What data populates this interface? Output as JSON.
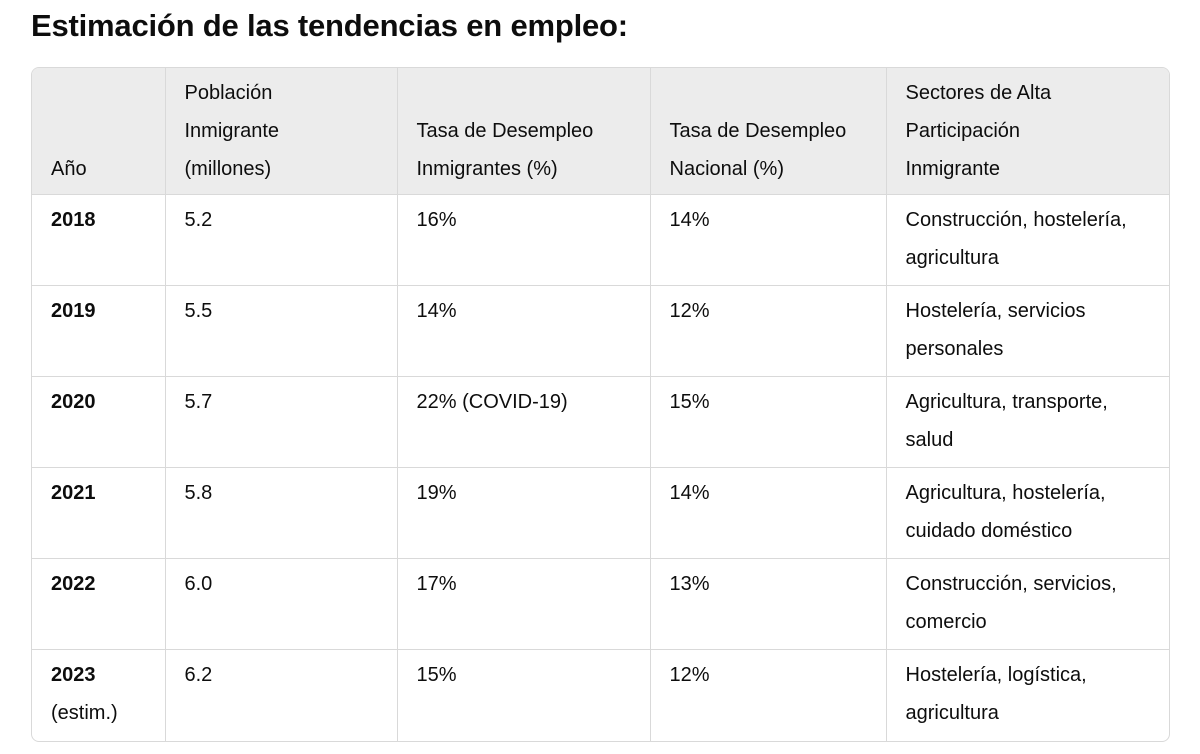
{
  "title": "Estimación de las tendencias en empleo:",
  "table": {
    "headers": [
      [
        "Año"
      ],
      [
        "Población",
        "Inmigrante",
        "(millones)"
      ],
      [
        "Tasa de Desempleo",
        "Inmigrantes (%)"
      ],
      [
        "Tasa de Desempleo",
        "Nacional (%)"
      ],
      [
        "Sectores de Alta",
        "Participación",
        "Inmigrante"
      ]
    ],
    "rows": [
      {
        "year": "2018",
        "cells": [
          "5.2",
          "16%",
          "14%",
          "Construcción, hostelería, agricultura"
        ]
      },
      {
        "year": "2019",
        "cells": [
          "5.5",
          "14%",
          "12%",
          "Hostelería, servicios personales"
        ]
      },
      {
        "year": "2020",
        "cells": [
          "5.7",
          "22% (COVID-19)",
          "15%",
          "Agricultura, transporte, salud"
        ]
      },
      {
        "year": "2021",
        "cells": [
          "5.8",
          "19%",
          "14%",
          "Agricultura, hostelería, cuidado doméstico"
        ]
      },
      {
        "year": "2022",
        "cells": [
          "6.0",
          "17%",
          "13%",
          "Construcción, servicios, comercio"
        ]
      },
      {
        "year": "2023",
        "year_note": "(estim.)",
        "cells": [
          "6.2",
          "15%",
          "12%",
          "Hostelería, logística, agricultura"
        ]
      }
    ]
  }
}
